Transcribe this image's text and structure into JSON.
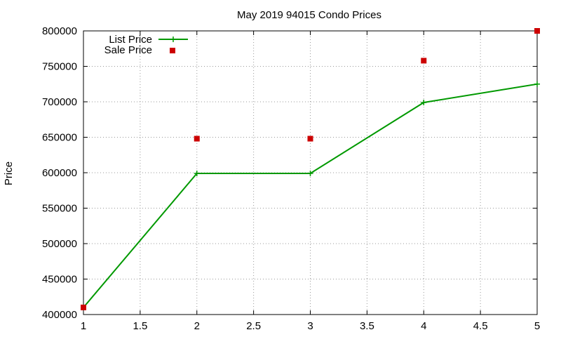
{
  "chart_data": {
    "type": "line",
    "title": "May 2019 94015 Condo Prices",
    "xlabel": "",
    "ylabel": "Price",
    "xlim": [
      1,
      5
    ],
    "ylim": [
      400000,
      800000
    ],
    "x_ticks": [
      "1",
      "1.5",
      "2",
      "2.5",
      "3",
      "3.5",
      "4",
      "4.5",
      "5"
    ],
    "y_ticks": [
      "400000",
      "450000",
      "500000",
      "550000",
      "600000",
      "650000",
      "700000",
      "750000",
      "800000"
    ],
    "grid": true,
    "legend_position": "top-left",
    "series": [
      {
        "name": "List Price",
        "style": "line-with-plus-markers",
        "color": "#009900",
        "x": [
          1,
          2,
          3,
          4,
          5
        ],
        "y": [
          410000,
          599000,
          599000,
          699000,
          725000
        ]
      },
      {
        "name": "Sale Price",
        "style": "square-points",
        "color": "#cc0000",
        "x": [
          1,
          2,
          3,
          4,
          5
        ],
        "y": [
          410000,
          648000,
          648000,
          758000,
          800000
        ]
      }
    ]
  }
}
